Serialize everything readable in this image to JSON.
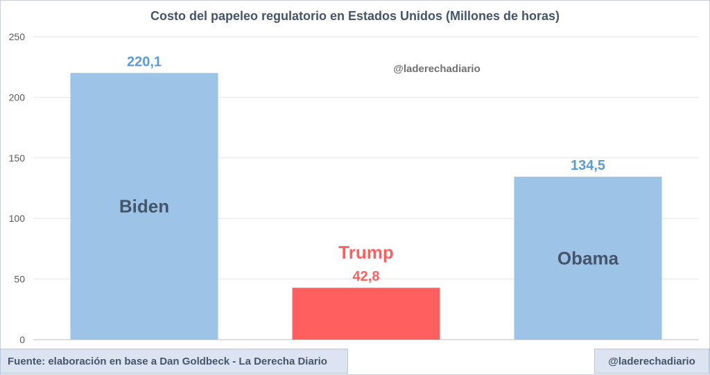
{
  "chart_data": {
    "type": "bar",
    "title": "Costo del papeleo regulatorio en Estados Unidos (Millones de horas)",
    "categories": [
      "Biden",
      "Trump",
      "Obama"
    ],
    "values": [
      220.1,
      42.8,
      134.5
    ],
    "value_labels": [
      "220,1",
      "42,8",
      "134,5"
    ],
    "ylim": [
      0,
      250
    ],
    "yticks": [
      0,
      50,
      100,
      150,
      200,
      250
    ],
    "grid": true,
    "bar_colors": [
      "#9dc3e6",
      "#ff5f5f",
      "#9dc3e6"
    ],
    "value_label_colors": [
      "#5b9bd5",
      "#ff5f5f",
      "#5b9bd5"
    ],
    "category_label_colors": [
      "#44546a",
      "#ff5f5f",
      "#44546a"
    ]
  },
  "watermark": "@laderechadiario",
  "footer": {
    "source": "Fuente: elaboración en base a Dan Goldbeck - La Derecha Diario",
    "handle": "@laderechadiario"
  },
  "colors": {
    "title": "#44546a",
    "axis_text": "#595959",
    "gridline": "#e6e6e6",
    "footer_bg": "#dce4f2"
  }
}
